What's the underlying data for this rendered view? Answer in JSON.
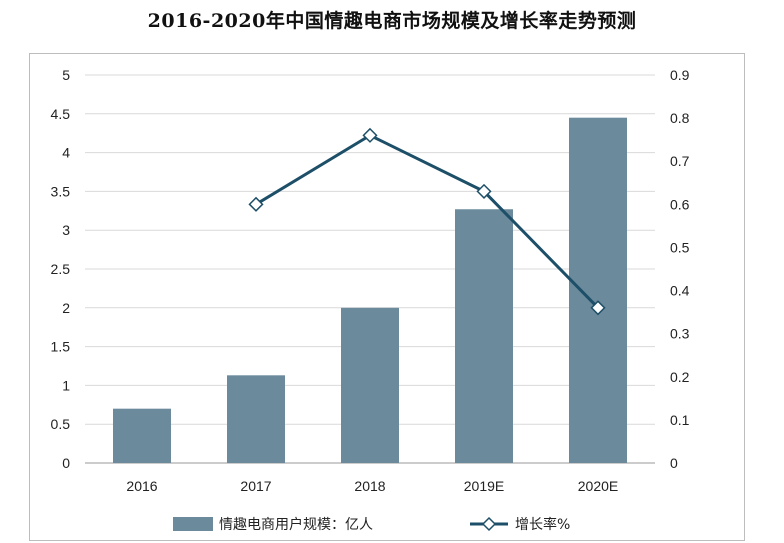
{
  "chart_data": {
    "type": "bar",
    "title": "2016-2020年中国情趣电商市场规模及增长率走势预测",
    "categories": [
      "2016",
      "2017",
      "2018",
      "2019E",
      "2020E"
    ],
    "series": [
      {
        "name": "情趣电商用户规模：亿人",
        "type": "bar",
        "axis": "left",
        "color": "#6b8a9c",
        "values": [
          0.7,
          1.13,
          2.0,
          3.27,
          4.45
        ]
      },
      {
        "name": "增长率%",
        "type": "line",
        "axis": "right",
        "color": "#1d4f68",
        "values": [
          null,
          0.6,
          0.76,
          0.63,
          0.36
        ]
      }
    ],
    "y_left": {
      "min": 0,
      "max": 5,
      "ticks": [
        "0",
        "0.5",
        "1",
        "1.5",
        "2",
        "2.5",
        "3",
        "3.5",
        "4",
        "4.5",
        "5"
      ]
    },
    "y_right": {
      "min": 0,
      "max": 0.9,
      "ticks": [
        "0",
        "0.1",
        "0.2",
        "0.3",
        "0.4",
        "0.5",
        "0.6",
        "0.7",
        "0.8",
        "0.9"
      ]
    },
    "grid": true,
    "legend": "bottom"
  }
}
